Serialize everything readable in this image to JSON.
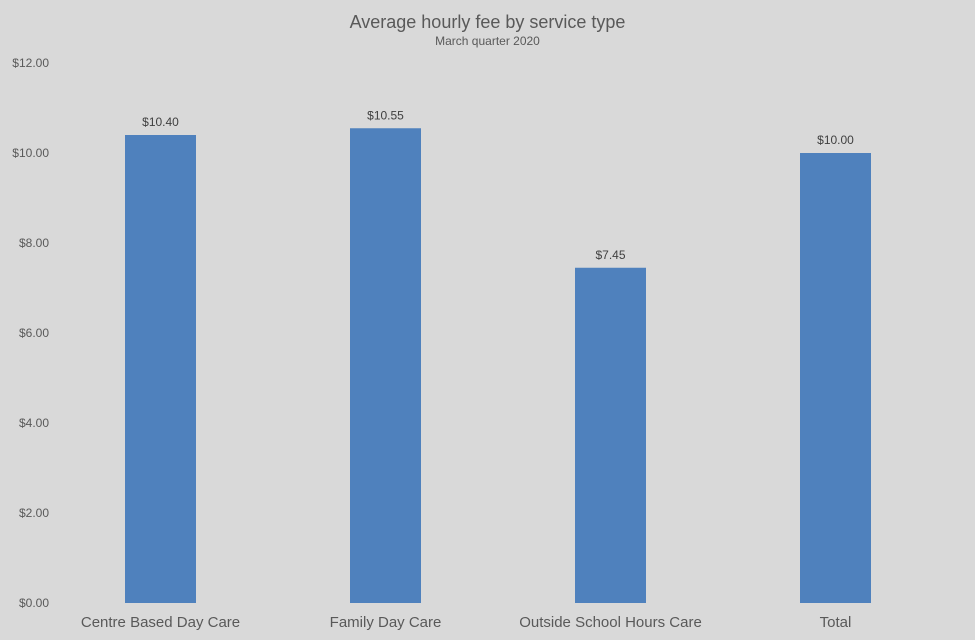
{
  "chart_data": {
    "type": "bar",
    "title": "Average hourly fee by service type",
    "subtitle": "March quarter 2020",
    "xlabel": "",
    "ylabel": "",
    "categories": [
      "Centre Based Day Care",
      "Family Day Care",
      "Outside School Hours Care",
      "Total"
    ],
    "values": [
      10.4,
      10.55,
      7.45,
      10.0
    ],
    "data_labels": [
      "$10.40",
      "$10.55",
      "$7.45",
      "$10.00"
    ],
    "ylim": [
      0,
      12
    ],
    "y_ticks": [
      0,
      2,
      4,
      6,
      8,
      10,
      12
    ],
    "y_tick_labels": [
      "$0.00",
      "$2.00",
      "$4.00",
      "$6.00",
      "$8.00",
      "$10.00",
      "$12.00"
    ],
    "grid": false,
    "legend": "none",
    "bar_color": "#4f81bd",
    "background_color": "#d9d9d9",
    "text_color": "#595959"
  }
}
